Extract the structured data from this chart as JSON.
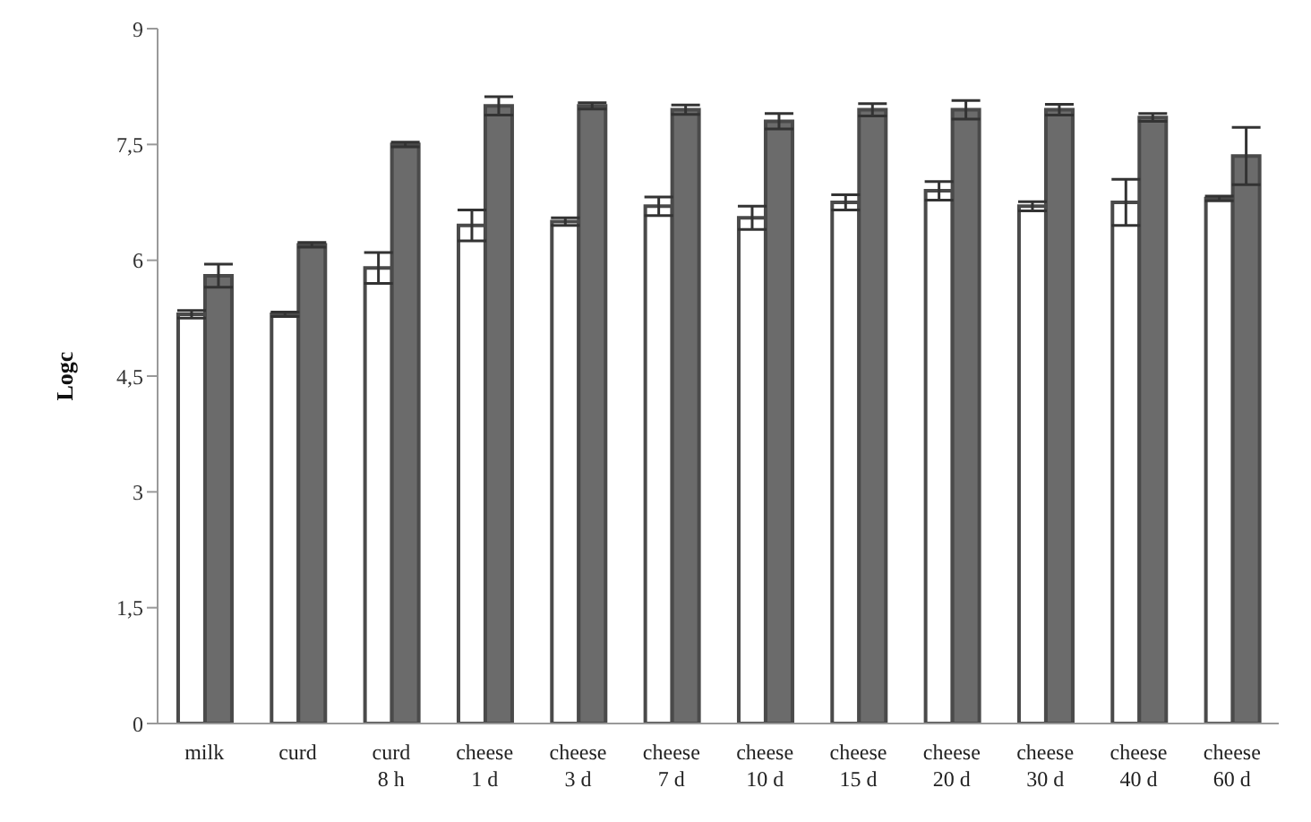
{
  "chart_data": {
    "type": "bar",
    "ylabel": "Logc",
    "categories": [
      "milk",
      "curd",
      "curd\n8 h",
      "cheese\n1 d",
      "cheese\n3 d",
      "cheese\n7 d",
      "cheese\n10 d",
      "cheese\n15 d",
      "cheese\n20 d",
      "cheese\n30 d",
      "cheese\n40 d",
      "cheese\n60 d"
    ],
    "series": [
      {
        "color": "#ffffff",
        "values": [
          5.3,
          5.3,
          5.9,
          6.45,
          6.5,
          6.7,
          6.55,
          6.75,
          6.9,
          6.7,
          6.75,
          6.8
        ],
        "errors": [
          0.05,
          0.03,
          0.2,
          0.2,
          0.05,
          0.12,
          0.15,
          0.1,
          0.12,
          0.06,
          0.3,
          0.03
        ]
      },
      {
        "color": "#6b6b6b",
        "values": [
          5.8,
          6.2,
          7.5,
          8.0,
          8.0,
          7.95,
          7.8,
          7.95,
          7.95,
          7.95,
          7.85,
          7.35
        ],
        "errors": [
          0.15,
          0.03,
          0.03,
          0.12,
          0.04,
          0.06,
          0.1,
          0.08,
          0.12,
          0.07,
          0.05,
          0.37
        ]
      }
    ],
    "ylim": [
      0,
      9
    ],
    "yticks": [
      0,
      {
        "value": 1.5,
        "label": "1,5"
      },
      3,
      {
        "value": 4.5,
        "label": "4,5"
      },
      6,
      {
        "value": 7.5,
        "label": "7,5"
      },
      9
    ],
    "grid": false,
    "legend": false
  }
}
